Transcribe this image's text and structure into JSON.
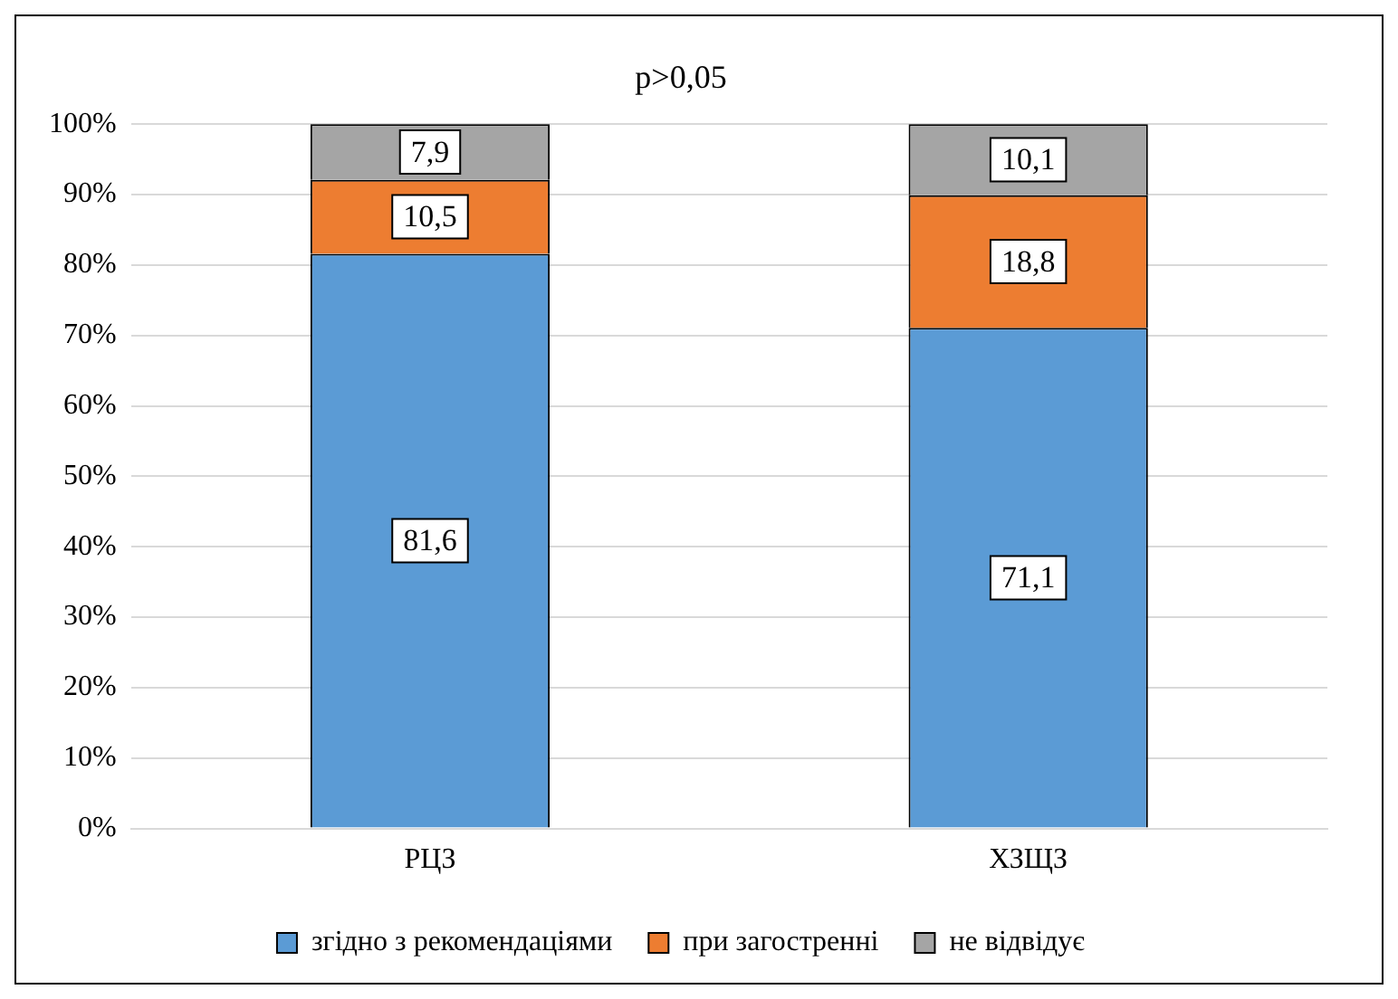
{
  "chart_data": {
    "type": "bar",
    "title": "p>0,05",
    "stacked": true,
    "categories": [
      "РЦЗ",
      "ХЗЩЗ"
    ],
    "series": [
      {
        "name": "згідно з рекомендаціями",
        "color": "#5b9bd5",
        "values": [
          81.6,
          71.1
        ],
        "value_labels": [
          "81,6",
          "71,1"
        ]
      },
      {
        "name": "при загостренні",
        "color": "#ed7d31",
        "values": [
          10.5,
          18.8
        ],
        "value_labels": [
          "10,5",
          "18,8"
        ]
      },
      {
        "name": "не відвідує",
        "color": "#a5a5a5",
        "values": [
          7.9,
          10.1
        ],
        "value_labels": [
          "7,9",
          "10,1"
        ]
      }
    ],
    "ylim": [
      0,
      100
    ],
    "yticks": [
      {
        "value": 0,
        "label": "0%"
      },
      {
        "value": 10,
        "label": "10%"
      },
      {
        "value": 20,
        "label": "20%"
      },
      {
        "value": 30,
        "label": "30%"
      },
      {
        "value": 40,
        "label": "40%"
      },
      {
        "value": 50,
        "label": "50%"
      },
      {
        "value": 60,
        "label": "60%"
      },
      {
        "value": 70,
        "label": "70%"
      },
      {
        "value": 80,
        "label": "80%"
      },
      {
        "value": 90,
        "label": "90%"
      },
      {
        "value": 100,
        "label": "100%"
      }
    ],
    "grid": "y",
    "legend": "bottom"
  }
}
